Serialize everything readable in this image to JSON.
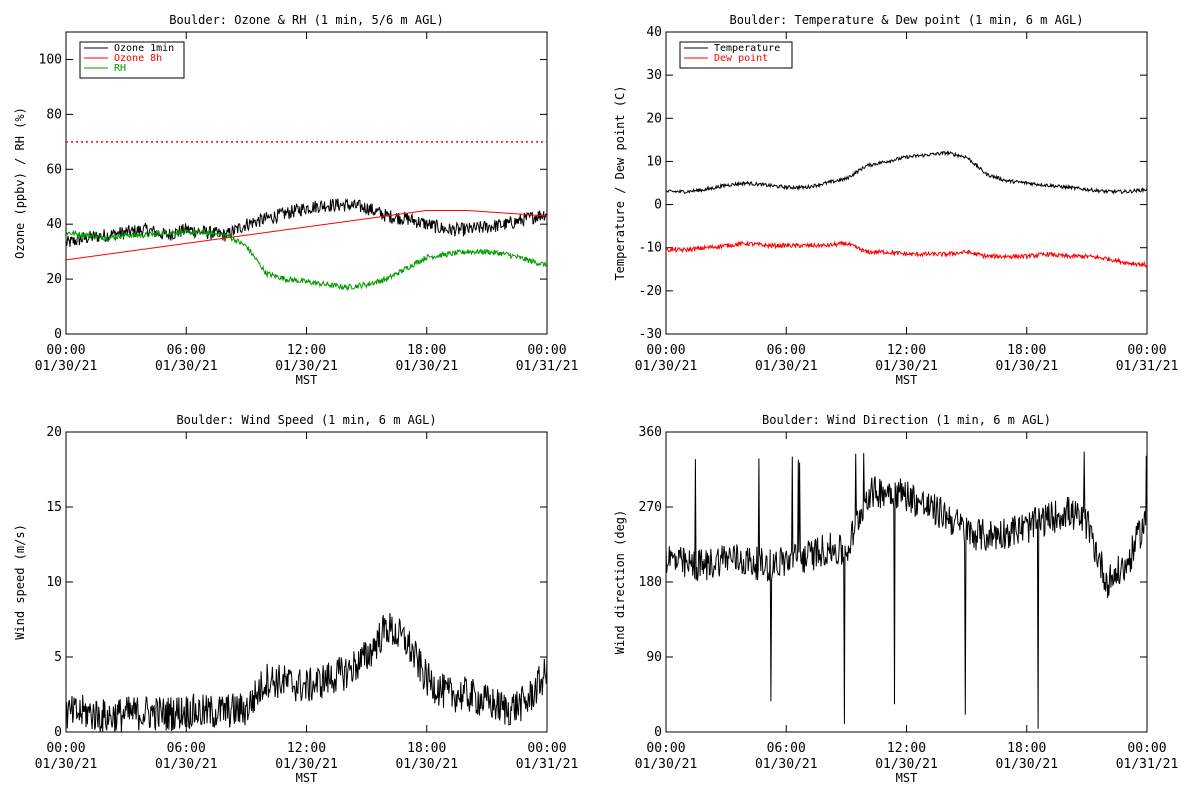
{
  "chart_data": [
    {
      "type": "line",
      "title": "Boulder: Ozone & RH (1 min, 5/6 m AGL)",
      "xlabel": "MST",
      "ylabel": "Ozone (ppbv) / RH (%)",
      "ylim": [
        0,
        110
      ],
      "yticks": [
        0,
        20,
        40,
        60,
        80,
        100
      ],
      "xlim": [
        0,
        24
      ],
      "xticks": [
        {
          "time": "00:00",
          "date": "01/30/21"
        },
        {
          "time": "06:00",
          "date": "01/30/21"
        },
        {
          "time": "12:00",
          "date": "01/30/21"
        },
        {
          "time": "18:00",
          "date": "01/30/21"
        },
        {
          "time": "00:00",
          "date": "01/31/21"
        }
      ],
      "legend_position": "top-left",
      "reference_line": {
        "y": 70,
        "color": "#ff0000",
        "style": "dotted"
      },
      "series": [
        {
          "name": "Ozone 1min",
          "color": "#000000",
          "noise": 2.5,
          "x": [
            0,
            1,
            2,
            3,
            4,
            5,
            6,
            7,
            8,
            9,
            10,
            11,
            12,
            13,
            14,
            15,
            16,
            17,
            18,
            19,
            20,
            21,
            22,
            23,
            24
          ],
          "values": [
            33,
            35,
            36,
            37,
            38,
            36,
            38,
            37,
            36,
            40,
            42,
            44,
            46,
            47,
            47,
            46,
            43,
            42,
            40,
            38,
            38,
            39,
            40,
            42,
            44
          ]
        },
        {
          "name": "Ozone 8h",
          "color": "#ff0000",
          "noise": 0,
          "x": [
            0,
            2,
            4,
            6,
            8,
            10,
            12,
            14,
            16,
            18,
            20,
            22,
            24
          ],
          "values": [
            27,
            29,
            31,
            33,
            35,
            37,
            39,
            41,
            43,
            45,
            45,
            44,
            43
          ]
        },
        {
          "name": "RH",
          "color": "#009900",
          "noise": 1.0,
          "x": [
            0,
            1,
            2,
            3,
            4,
            5,
            6,
            7,
            8,
            9,
            10,
            11,
            12,
            13,
            14,
            15,
            16,
            17,
            18,
            19,
            20,
            21,
            22,
            23,
            24
          ],
          "values": [
            37,
            36,
            35,
            36,
            36,
            37,
            37,
            37,
            36,
            32,
            22,
            20,
            19,
            18,
            17,
            18,
            20,
            24,
            28,
            29,
            30,
            30,
            29,
            27,
            25
          ]
        }
      ]
    },
    {
      "type": "line",
      "title": "Boulder: Temperature & Dew point (1 min, 6 m AGL)",
      "xlabel": "MST",
      "ylabel": "Temperature / Dew point (C)",
      "ylim": [
        -30,
        40
      ],
      "yticks": [
        -30,
        -20,
        -10,
        0,
        10,
        20,
        30,
        40
      ],
      "xlim": [
        0,
        24
      ],
      "xticks": [
        {
          "time": "00:00",
          "date": "01/30/21"
        },
        {
          "time": "06:00",
          "date": "01/30/21"
        },
        {
          "time": "12:00",
          "date": "01/30/21"
        },
        {
          "time": "18:00",
          "date": "01/30/21"
        },
        {
          "time": "00:00",
          "date": "01/31/21"
        }
      ],
      "legend_position": "top-left",
      "series": [
        {
          "name": "Temperature",
          "color": "#000000",
          "noise": 0.4,
          "x": [
            0,
            1,
            2,
            3,
            4,
            5,
            6,
            7,
            8,
            9,
            10,
            11,
            12,
            13,
            14,
            15,
            16,
            17,
            18,
            19,
            20,
            21,
            22,
            23,
            24
          ],
          "values": [
            3,
            3,
            3.5,
            4.5,
            5,
            4.5,
            4,
            4,
            5,
            6,
            9,
            10,
            11,
            11.5,
            12,
            11,
            7,
            5.5,
            5,
            4.5,
            4,
            3.5,
            3,
            3,
            3.5
          ]
        },
        {
          "name": "Dew point",
          "color": "#ff0000",
          "noise": 0.5,
          "x": [
            0,
            1,
            2,
            3,
            4,
            5,
            6,
            7,
            8,
            9,
            10,
            11,
            12,
            13,
            14,
            15,
            16,
            17,
            18,
            19,
            20,
            21,
            22,
            23,
            24
          ],
          "values": [
            -10.5,
            -10.5,
            -10,
            -9.5,
            -9,
            -9.5,
            -9.5,
            -9.5,
            -9.5,
            -9,
            -11,
            -11,
            -11.5,
            -11.5,
            -11.5,
            -11,
            -12,
            -12,
            -12,
            -11.5,
            -12,
            -12,
            -12.5,
            -13.5,
            -14
          ]
        }
      ]
    },
    {
      "type": "line",
      "title": "Boulder: Wind Speed (1 min, 6 m AGL)",
      "xlabel": "MST",
      "ylabel": "Wind speed (m/s)",
      "ylim": [
        0,
        20
      ],
      "yticks": [
        0,
        5,
        10,
        15,
        20
      ],
      "xlim": [
        0,
        24
      ],
      "xticks": [
        {
          "time": "00:00",
          "date": "01/30/21"
        },
        {
          "time": "06:00",
          "date": "01/30/21"
        },
        {
          "time": "12:00",
          "date": "01/30/21"
        },
        {
          "time": "18:00",
          "date": "01/30/21"
        },
        {
          "time": "00:00",
          "date": "01/31/21"
        }
      ],
      "series": [
        {
          "color": "#000000",
          "noise": 1.2,
          "min": 0,
          "x": [
            0,
            1,
            2,
            3,
            4,
            5,
            6,
            7,
            8,
            9,
            10,
            11,
            12,
            13,
            14,
            15,
            16,
            17,
            18,
            19,
            20,
            21,
            22,
            23,
            24
          ],
          "values": [
            1.2,
            1.3,
            1,
            1.2,
            1.3,
            1.2,
            1.4,
            1.3,
            1.4,
            1.5,
            3.5,
            3.3,
            3,
            3.5,
            4,
            5,
            7,
            6,
            3.5,
            2.5,
            2.5,
            2,
            1.5,
            2,
            4
          ]
        }
      ]
    },
    {
      "type": "line",
      "title": "Boulder: Wind Direction (1 min, 6 m AGL)",
      "xlabel": "MST",
      "ylabel": "Wind direction (deg)",
      "ylim": [
        0,
        360
      ],
      "yticks": [
        0,
        90,
        180,
        270,
        360
      ],
      "xlim": [
        0,
        24
      ],
      "xticks": [
        {
          "time": "00:00",
          "date": "01/30/21"
        },
        {
          "time": "06:00",
          "date": "01/30/21"
        },
        {
          "time": "12:00",
          "date": "01/30/21"
        },
        {
          "time": "18:00",
          "date": "01/30/21"
        },
        {
          "time": "00:00",
          "date": "01/31/21"
        }
      ],
      "series": [
        {
          "color": "#000000",
          "noise": 20,
          "min": 0,
          "max": 360,
          "spikes": 0.015,
          "x": [
            0,
            1,
            2,
            3,
            4,
            5,
            6,
            7,
            8,
            9,
            10,
            11,
            12,
            13,
            14,
            15,
            16,
            17,
            18,
            19,
            20,
            21,
            22,
            23,
            24
          ],
          "values": [
            210,
            200,
            200,
            210,
            205,
            200,
            205,
            210,
            220,
            215,
            285,
            290,
            285,
            270,
            260,
            240,
            235,
            240,
            245,
            255,
            265,
            250,
            180,
            200,
            260
          ]
        }
      ]
    }
  ]
}
